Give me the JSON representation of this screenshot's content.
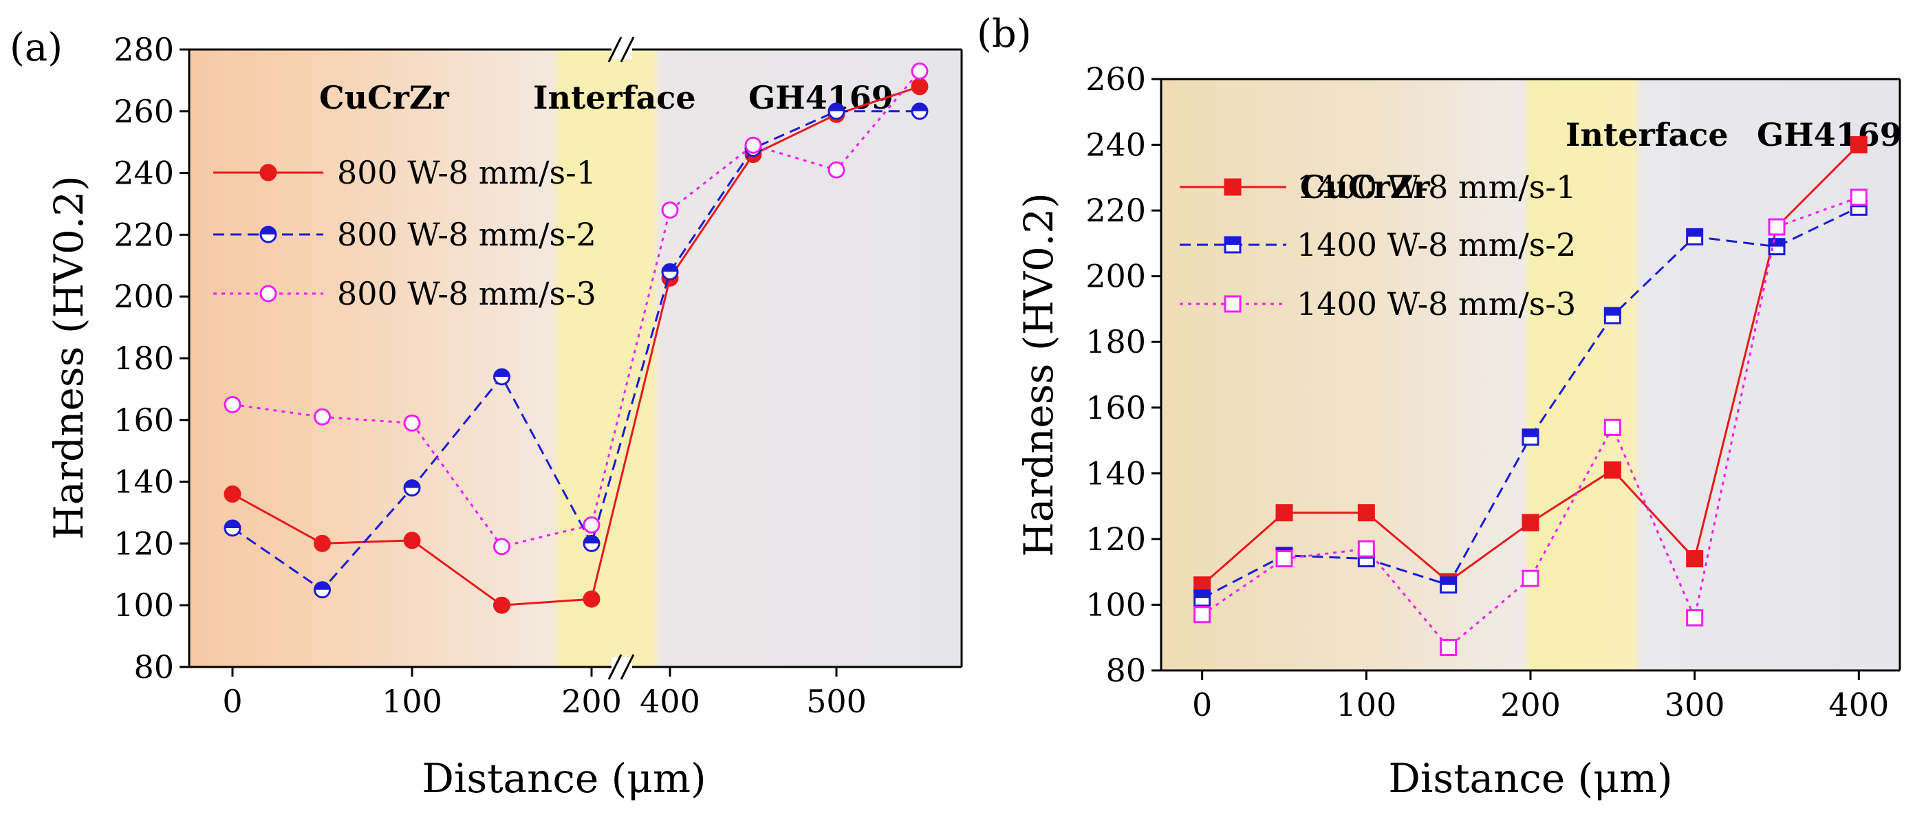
{
  "chart_data": [
    {
      "type": "line",
      "panel_label": "(a)",
      "xlabel": "Distance (μm)",
      "ylabel": "Hardness (HV0.2)",
      "ylim": [
        80,
        280
      ],
      "ytick_values": [
        80,
        100,
        120,
        140,
        160,
        180,
        200,
        220,
        240,
        260,
        280
      ],
      "ytick_labels": [
        "80",
        "100",
        "120",
        "140",
        "160",
        "180",
        "200",
        "220",
        "240",
        "260",
        "280"
      ],
      "xtick_labels": [
        "0",
        "100",
        "200",
        "400",
        "500"
      ],
      "x_axis_break": "between 200 and 400",
      "x": [
        0,
        50,
        100,
        150,
        200,
        400,
        450,
        500,
        550
      ],
      "regions": [
        {
          "label": "CuCrZr",
          "color": "#f6d2b0"
        },
        {
          "label": "Interface",
          "color": "#f8efb4"
        },
        {
          "label": "GH4169",
          "color": "#e7e7ec"
        }
      ],
      "legend_position": "upper-left",
      "series": [
        {
          "name": "800 W-8 mm/s-1",
          "color": "#e8191b",
          "style": "solid",
          "marker": "filled-circle",
          "values": [
            136,
            120,
            121,
            100,
            102,
            206,
            246,
            259,
            268
          ]
        },
        {
          "name": "800 W-8 mm/s-2",
          "color": "#1b1bd6",
          "style": "dashed",
          "marker": "half-circle",
          "values": [
            125,
            105,
            138,
            174,
            120,
            208,
            248,
            260,
            260
          ]
        },
        {
          "name": "800 W-8 mm/s-3",
          "color": "#f21df2",
          "style": "dotted",
          "marker": "open-circle",
          "values": [
            165,
            161,
            159,
            119,
            126,
            228,
            249,
            241,
            273
          ]
        }
      ]
    },
    {
      "type": "line",
      "panel_label": "(b)",
      "xlabel": "Distance (μm)",
      "ylabel": "Hardness (HV0.2)",
      "ylim": [
        80,
        260
      ],
      "xlim": [
        -25,
        425
      ],
      "ytick_values": [
        80,
        100,
        120,
        140,
        160,
        180,
        200,
        220,
        240,
        260
      ],
      "ytick_labels": [
        "80",
        "100",
        "120",
        "140",
        "160",
        "180",
        "200",
        "220",
        "240",
        "260"
      ],
      "xtick_values": [
        0,
        100,
        200,
        300,
        400
      ],
      "xtick_labels": [
        "0",
        "100",
        "200",
        "300",
        "400"
      ],
      "x": [
        0,
        50,
        100,
        150,
        200,
        250,
        300,
        350,
        400
      ],
      "regions": [
        {
          "label": "CuCrZr",
          "color": "#f2dfbc"
        },
        {
          "label": "Interface",
          "color": "#f8efb4"
        },
        {
          "label": "GH4169",
          "color": "#e7e7ec"
        }
      ],
      "legend_position": "upper-left",
      "series": [
        {
          "name": "1400 W-8 mm/s-1",
          "color": "#e8191b",
          "style": "solid",
          "marker": "filled-square",
          "values": [
            106,
            128,
            128,
            107,
            125,
            141,
            114,
            215,
            240
          ]
        },
        {
          "name": "1400 W-8 mm/s-2",
          "color": "#1b1bd6",
          "style": "dashed",
          "marker": "half-square",
          "values": [
            102,
            115,
            114,
            106,
            151,
            188,
            212,
            209,
            221
          ]
        },
        {
          "name": "1400 W-8 mm/s-3",
          "color": "#f21df2",
          "style": "dotted",
          "marker": "open-square",
          "values": [
            97,
            114,
            117,
            87,
            108,
            154,
            96,
            215,
            224
          ]
        }
      ]
    }
  ]
}
